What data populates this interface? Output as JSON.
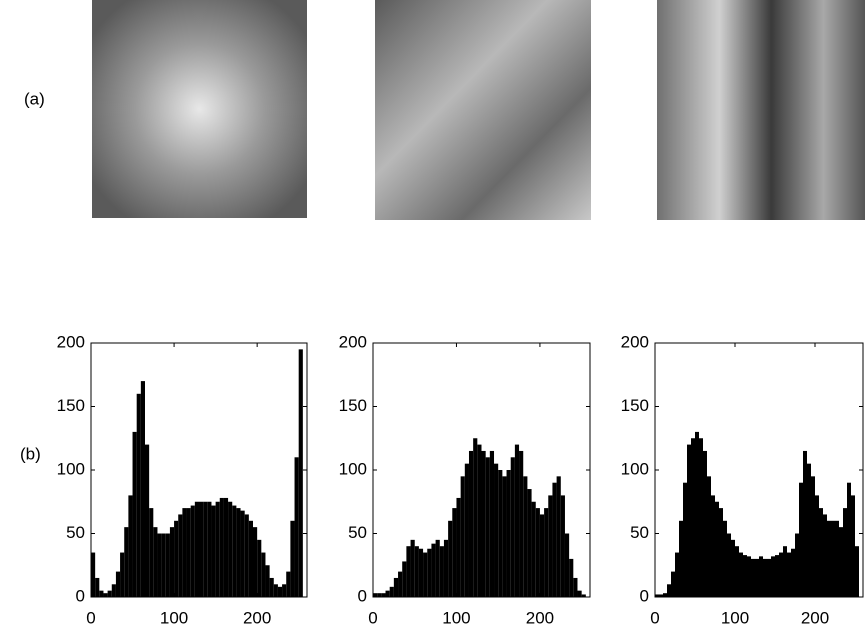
{
  "panel_labels": [
    "(a)",
    "(b)"
  ],
  "chart_data": [
    {
      "type": "histogram",
      "color": "#000000",
      "bins": [
        0,
        5,
        10,
        15,
        20,
        25,
        30,
        35,
        40,
        45,
        50,
        55,
        60,
        65,
        70,
        75,
        80,
        85,
        90,
        95,
        100,
        105,
        110,
        115,
        120,
        125,
        130,
        135,
        140,
        145,
        150,
        155,
        160,
        165,
        170,
        175,
        180,
        185,
        190,
        195,
        200,
        205,
        210,
        215,
        220,
        225,
        230,
        235,
        240,
        245,
        250,
        255,
        260
      ],
      "values": [
        35,
        15,
        5,
        3,
        5,
        10,
        20,
        35,
        55,
        80,
        130,
        160,
        170,
        120,
        70,
        55,
        50,
        50,
        50,
        55,
        60,
        65,
        70,
        70,
        72,
        75,
        75,
        75,
        75,
        72,
        75,
        78,
        78,
        75,
        72,
        70,
        68,
        65,
        60,
        55,
        45,
        35,
        25,
        15,
        10,
        8,
        10,
        20,
        60,
        110,
        195,
        0
      ],
      "xlim": [
        0,
        260
      ],
      "xticks": [
        0,
        100,
        200
      ],
      "ylim": [
        0,
        200
      ],
      "yticks": [
        0,
        50,
        100,
        150,
        200
      ]
    },
    {
      "type": "histogram",
      "color": "#000000",
      "bins": [
        0,
        5,
        10,
        15,
        20,
        25,
        30,
        35,
        40,
        45,
        50,
        55,
        60,
        65,
        70,
        75,
        80,
        85,
        90,
        95,
        100,
        105,
        110,
        115,
        120,
        125,
        130,
        135,
        140,
        145,
        150,
        155,
        160,
        165,
        170,
        175,
        180,
        185,
        190,
        195,
        200,
        205,
        210,
        215,
        220,
        225,
        230,
        235,
        240,
        245,
        250,
        255,
        260
      ],
      "values": [
        3,
        3,
        3,
        5,
        8,
        15,
        20,
        28,
        40,
        45,
        40,
        38,
        35,
        38,
        42,
        45,
        40,
        45,
        60,
        70,
        78,
        95,
        105,
        115,
        125,
        120,
        115,
        110,
        115,
        105,
        100,
        95,
        100,
        110,
        120,
        115,
        95,
        85,
        75,
        70,
        65,
        70,
        80,
        90,
        95,
        80,
        50,
        30,
        15,
        5,
        2,
        0
      ],
      "xlim": [
        0,
        260
      ],
      "xticks": [
        0,
        100,
        200
      ],
      "ylim": [
        0,
        200
      ],
      "yticks": [
        0,
        50,
        100,
        150,
        200
      ]
    },
    {
      "type": "histogram",
      "color": "#000000",
      "bins": [
        0,
        5,
        10,
        15,
        20,
        25,
        30,
        35,
        40,
        45,
        50,
        55,
        60,
        65,
        70,
        75,
        80,
        85,
        90,
        95,
        100,
        105,
        110,
        115,
        120,
        125,
        130,
        135,
        140,
        145,
        150,
        155,
        160,
        165,
        170,
        175,
        180,
        185,
        190,
        195,
        200,
        205,
        210,
        215,
        220,
        225,
        230,
        235,
        240,
        245,
        250,
        255,
        260
      ],
      "values": [
        2,
        2,
        3,
        10,
        20,
        35,
        60,
        90,
        120,
        125,
        130,
        125,
        115,
        95,
        80,
        75,
        70,
        60,
        50,
        45,
        40,
        35,
        33,
        32,
        30,
        30,
        32,
        30,
        30,
        32,
        33,
        35,
        40,
        35,
        38,
        50,
        90,
        115,
        105,
        95,
        80,
        70,
        65,
        60,
        60,
        60,
        55,
        70,
        90,
        80,
        40,
        0
      ],
      "xlim": [
        0,
        260
      ],
      "xticks": [
        0,
        100,
        200
      ],
      "ylim": [
        0,
        200
      ],
      "yticks": [
        0,
        50,
        100,
        150,
        200
      ]
    }
  ]
}
